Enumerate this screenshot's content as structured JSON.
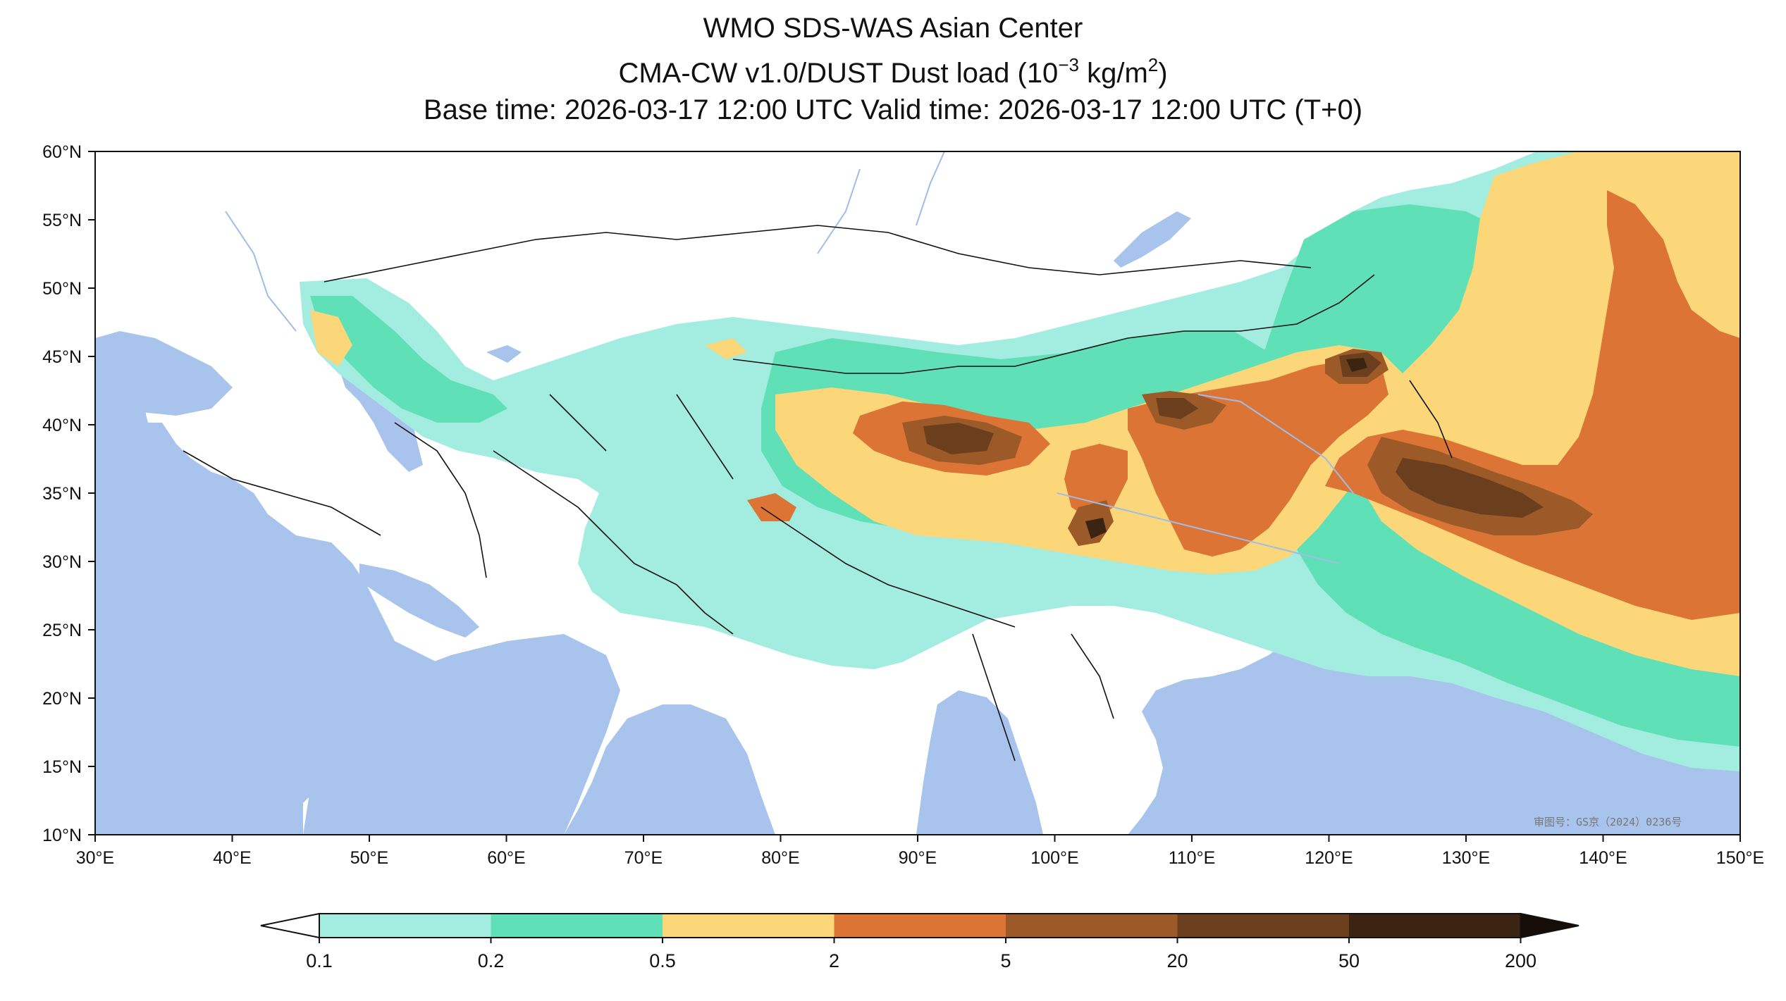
{
  "title": {
    "line1": "WMO SDS-WAS Asian Center",
    "line2_prefix": "CMA-CW v1.0/DUST Dust load (10",
    "line2_exp": "−3",
    "line2_mid": " kg/m",
    "line2_exp2": "2",
    "line2_suffix": ")",
    "line3": "Base time: 2026-03-17 12:00 UTC Valid time: 2026-03-17 12:00 UTC (T+0)"
  },
  "axes": {
    "lon_range": [
      30,
      150
    ],
    "lat_range": [
      10,
      60
    ],
    "lon_ticks": [
      "30°E",
      "40°E",
      "50°E",
      "60°E",
      "70°E",
      "80°E",
      "90°E",
      "100°E",
      "110°E",
      "120°E",
      "130°E",
      "140°E",
      "150°E"
    ],
    "lat_ticks": [
      "60°N",
      "55°N",
      "50°N",
      "45°N",
      "40°N",
      "35°N",
      "30°N",
      "25°N",
      "20°N",
      "15°N",
      "10°N"
    ]
  },
  "colorbar": {
    "levels": [
      "0.1",
      "0.2",
      "0.5",
      "2",
      "5",
      "20",
      "50",
      "200"
    ],
    "colors": [
      "#a3ece0",
      "#5fe0b6",
      "#fbd77a",
      "#dc7436",
      "#9b5a27",
      "#6b3f1e",
      "#3c2413"
    ],
    "extend": "both"
  },
  "colors": {
    "ocean": "#a8c3ec",
    "land": "#ffffff",
    "border": "#111111",
    "river": "#9fbde6"
  },
  "watermark": "审图号：GS京（2024）0236号"
}
